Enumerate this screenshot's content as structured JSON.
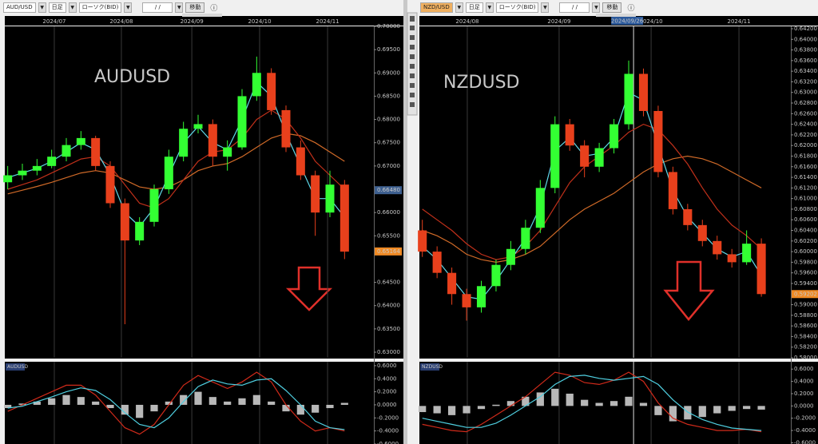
{
  "toolbars": [
    {
      "symbol": "AUD/USD",
      "timeframe": "日足",
      "chart_style": "ローソク(BID)",
      "date": "/  /",
      "button": "移動"
    },
    {
      "symbol": "NZD/USD",
      "timeframe": "日足",
      "chart_style": "ローソク(BID)",
      "date": "/  /",
      "button": "移動"
    }
  ],
  "chart_data": [
    {
      "type": "candlestick",
      "label": "AUDUSD",
      "label_color": "#e8782e",
      "up_color": "#33ff33",
      "down_color": "#e8401c",
      "xlim": [
        -0.2,
        25
      ],
      "xticks": [
        {
          "value": 3.18,
          "label": "2024/07"
        },
        {
          "value": 7.76,
          "label": "2024/08"
        },
        {
          "value": 12.57,
          "label": "2024/09"
        },
        {
          "value": 17.2,
          "label": "2024/10"
        },
        {
          "value": 21.84,
          "label": "2024/11"
        }
      ],
      "ylim": [
        0.6288,
        0.7
      ],
      "yticks": [
        {
          "value": 0.7,
          "label": "0.70000"
        },
        {
          "value": 0.695,
          "label": "0.69500"
        },
        {
          "value": 0.69,
          "label": "0.69000"
        },
        {
          "value": 0.685,
          "label": "0.68500"
        },
        {
          "value": 0.68,
          "label": "0.68000"
        },
        {
          "value": 0.675,
          "label": "0.67500"
        },
        {
          "value": 0.67,
          "label": "0.67000"
        },
        {
          "value": 0.66,
          "label": "0.66000"
        },
        {
          "value": 0.655,
          "label": "0.65500"
        },
        {
          "value": 0.645,
          "label": "0.64500"
        },
        {
          "value": 0.64,
          "label": "0.64000"
        },
        {
          "value": 0.635,
          "label": "0.63500"
        },
        {
          "value": 0.63,
          "label": "0.63000"
        }
      ],
      "open": [
        0.6665,
        0.668,
        0.669,
        0.67,
        0.672,
        0.6745,
        0.676,
        0.67,
        0.662,
        0.654,
        0.658,
        0.665,
        0.672,
        0.678,
        0.679,
        0.672,
        0.674,
        0.685,
        0.69,
        0.682,
        0.674,
        0.668,
        0.66,
        0.666
      ],
      "high": [
        0.67,
        0.6705,
        0.6715,
        0.6735,
        0.676,
        0.6775,
        0.6765,
        0.671,
        0.663,
        0.659,
        0.666,
        0.6735,
        0.6795,
        0.681,
        0.68,
        0.6755,
        0.6865,
        0.6935,
        0.691,
        0.683,
        0.6755,
        0.669,
        0.669,
        0.667
      ],
      "low": [
        0.665,
        0.667,
        0.668,
        0.6695,
        0.671,
        0.6735,
        0.669,
        0.661,
        0.636,
        0.653,
        0.657,
        0.664,
        0.671,
        0.677,
        0.67,
        0.669,
        0.6735,
        0.684,
        0.681,
        0.673,
        0.667,
        0.655,
        0.659,
        0.65
      ],
      "close": [
        0.668,
        0.669,
        0.67,
        0.672,
        0.6745,
        0.676,
        0.67,
        0.662,
        0.654,
        0.658,
        0.665,
        0.672,
        0.678,
        0.679,
        0.672,
        0.674,
        0.685,
        0.69,
        0.682,
        0.674,
        0.668,
        0.66,
        0.666,
        0.6516
      ],
      "series": [
        {
          "color": "#d06a28",
          "values": [
            0.664,
            0.6648,
            0.6656,
            0.6665,
            0.6675,
            0.6685,
            0.669,
            0.6685,
            0.667,
            0.6655,
            0.665,
            0.6655,
            0.667,
            0.669,
            0.67,
            0.6705,
            0.672,
            0.674,
            0.676,
            0.677,
            0.6765,
            0.675,
            0.673,
            0.671
          ]
        },
        {
          "color": "#c0301a",
          "values": [
            0.665,
            0.666,
            0.667,
            0.6685,
            0.67,
            0.6715,
            0.672,
            0.67,
            0.666,
            0.662,
            0.661,
            0.663,
            0.667,
            0.671,
            0.673,
            0.6735,
            0.676,
            0.68,
            0.682,
            0.68,
            0.676,
            0.671,
            0.668,
            0.665
          ]
        },
        {
          "color": "#5fd8e8",
          "values": [
            0.6675,
            0.6685,
            0.6695,
            0.671,
            0.673,
            0.675,
            0.6735,
            0.668,
            0.66,
            0.657,
            0.661,
            0.668,
            0.675,
            0.6785,
            0.675,
            0.6735,
            0.68,
            0.688,
            0.685,
            0.677,
            0.67,
            0.663,
            0.663,
            0.659
          ]
        }
      ],
      "markers": [
        {
          "value": 0.6648,
          "label": "0.66480",
          "color": "#3d5f8f"
        },
        {
          "value": 0.65164,
          "label": "0.65164",
          "color": "#f08a24"
        }
      ]
    },
    {
      "type": "macd",
      "tag": "AUDUSD",
      "bar_color": "#b8b8b8",
      "ylim": [
        -0.6,
        0.66
      ],
      "yticks": [
        {
          "value": 0.6,
          "label": "0.6000"
        },
        {
          "value": 0.4,
          "label": "0.4000"
        },
        {
          "value": 0.2,
          "label": "0.2000"
        },
        {
          "value": 0,
          "label": "0.0000"
        },
        {
          "value": -0.2,
          "label": "-0.2000"
        },
        {
          "value": -0.4,
          "label": "-0.4000"
        },
        {
          "value": -0.6,
          "label": "-0.6000"
        }
      ],
      "bars": [
        -0.05,
        0.02,
        0.05,
        0.1,
        0.15,
        0.12,
        0.05,
        -0.05,
        -0.15,
        -0.2,
        -0.1,
        0.05,
        0.15,
        0.2,
        0.12,
        0.05,
        0.1,
        0.15,
        0.05,
        -0.1,
        -0.15,
        -0.12,
        -0.05,
        0.03
      ],
      "series": [
        {
          "color": "#d02a1a",
          "values": [
            -0.1,
            0.0,
            0.1,
            0.2,
            0.3,
            0.3,
            0.15,
            -0.1,
            -0.35,
            -0.45,
            -0.3,
            0.0,
            0.3,
            0.45,
            0.35,
            0.25,
            0.35,
            0.5,
            0.35,
            0.0,
            -0.25,
            -0.4,
            -0.35,
            -0.4
          ]
        },
        {
          "color": "#4fcfe0",
          "values": [
            -0.05,
            -0.02,
            0.05,
            0.12,
            0.2,
            0.26,
            0.22,
            0.08,
            -0.12,
            -0.3,
            -0.35,
            -0.2,
            0.05,
            0.28,
            0.38,
            0.32,
            0.3,
            0.38,
            0.4,
            0.22,
            0.0,
            -0.25,
            -0.35,
            -0.38
          ]
        }
      ]
    },
    {
      "type": "candlestick",
      "label": "NZDUSD",
      "label_color": "#e8782e",
      "up_color": "#33ff33",
      "down_color": "#e8401c",
      "xlim": [
        -0.2,
        25
      ],
      "xticks": [
        {
          "value": 3.05,
          "label": "2024/08"
        },
        {
          "value": 9.28,
          "label": "2024/09"
        },
        {
          "value": 15.52,
          "label": "2024/10"
        },
        {
          "value": 21.48,
          "label": "2024/11"
        }
      ],
      "cursor": {
        "value": 14.33,
        "label": "2024/09/26"
      },
      "ylim": [
        0.58,
        0.64245
      ],
      "yticks": [
        {
          "value": 0.642,
          "label": "0.64200"
        },
        {
          "value": 0.64,
          "label": "0.64000"
        },
        {
          "value": 0.638,
          "label": "0.63800"
        },
        {
          "value": 0.636,
          "label": "0.63600"
        },
        {
          "value": 0.634,
          "label": "0.63400"
        },
        {
          "value": 0.632,
          "label": "0.63200"
        },
        {
          "value": 0.63,
          "label": "0.63000"
        },
        {
          "value": 0.628,
          "label": "0.62800"
        },
        {
          "value": 0.626,
          "label": "0.62600"
        },
        {
          "value": 0.624,
          "label": "0.62400"
        },
        {
          "value": 0.622,
          "label": "0.62200"
        },
        {
          "value": 0.62,
          "label": "0.62000"
        },
        {
          "value": 0.618,
          "label": "0.61800"
        },
        {
          "value": 0.616,
          "label": "0.61600"
        },
        {
          "value": 0.614,
          "label": "0.61400"
        },
        {
          "value": 0.612,
          "label": "0.61200"
        },
        {
          "value": 0.61,
          "label": "0.61000"
        },
        {
          "value": 0.608,
          "label": "0.60800"
        },
        {
          "value": 0.606,
          "label": "0.60600"
        },
        {
          "value": 0.604,
          "label": "0.60400"
        },
        {
          "value": 0.602,
          "label": "0.60200"
        },
        {
          "value": 0.6,
          "label": "0.60000"
        },
        {
          "value": 0.598,
          "label": "0.59800"
        },
        {
          "value": 0.596,
          "label": "0.59600"
        },
        {
          "value": 0.594,
          "label": "0.59400"
        },
        {
          "value": 0.59,
          "label": "0.59000"
        },
        {
          "value": 0.588,
          "label": "0.58800"
        },
        {
          "value": 0.586,
          "label": "0.58600"
        },
        {
          "value": 0.584,
          "label": "0.58400"
        },
        {
          "value": 0.582,
          "label": "0.58200"
        },
        {
          "value": 0.58,
          "label": "0.58000"
        }
      ],
      "open": [
        0.604,
        0.6,
        0.596,
        0.592,
        0.5895,
        0.5935,
        0.5975,
        0.6005,
        0.6045,
        0.612,
        0.624,
        0.62,
        0.616,
        0.6195,
        0.624,
        0.6335,
        0.6265,
        0.615,
        0.608,
        0.605,
        0.602,
        0.5995,
        0.598,
        0.6015
      ],
      "high": [
        0.606,
        0.601,
        0.597,
        0.593,
        0.5945,
        0.5985,
        0.602,
        0.606,
        0.6135,
        0.6255,
        0.625,
        0.621,
        0.6205,
        0.625,
        0.636,
        0.6345,
        0.6275,
        0.616,
        0.609,
        0.606,
        0.603,
        0.6005,
        0.604,
        0.6025
      ],
      "low": [
        0.599,
        0.595,
        0.59,
        0.587,
        0.5885,
        0.5925,
        0.5965,
        0.5995,
        0.6035,
        0.611,
        0.619,
        0.614,
        0.615,
        0.6185,
        0.623,
        0.6255,
        0.614,
        0.607,
        0.604,
        0.601,
        0.5985,
        0.597,
        0.5975,
        0.5915
      ],
      "close": [
        0.6,
        0.596,
        0.592,
        0.5895,
        0.5935,
        0.5975,
        0.6005,
        0.6045,
        0.612,
        0.624,
        0.62,
        0.616,
        0.6195,
        0.624,
        0.6335,
        0.6265,
        0.615,
        0.608,
        0.605,
        0.602,
        0.5995,
        0.598,
        0.6015,
        0.592
      ],
      "series": [
        {
          "color": "#d06a28",
          "values": [
            0.604,
            0.603,
            0.6015,
            0.5995,
            0.5985,
            0.598,
            0.5985,
            0.5995,
            0.601,
            0.6035,
            0.606,
            0.608,
            0.6095,
            0.611,
            0.613,
            0.615,
            0.6165,
            0.6175,
            0.618,
            0.6175,
            0.6165,
            0.615,
            0.6135,
            0.612
          ]
        },
        {
          "color": "#c0301a",
          "values": [
            0.608,
            0.606,
            0.604,
            0.6015,
            0.5995,
            0.5985,
            0.599,
            0.601,
            0.604,
            0.6085,
            0.613,
            0.616,
            0.618,
            0.62,
            0.6225,
            0.624,
            0.623,
            0.62,
            0.6165,
            0.612,
            0.608,
            0.605,
            0.603,
            0.6005
          ]
        },
        {
          "color": "#5fd8e8",
          "values": [
            0.601,
            0.5985,
            0.595,
            0.5915,
            0.591,
            0.5945,
            0.5985,
            0.6025,
            0.6085,
            0.619,
            0.6215,
            0.618,
            0.6185,
            0.6215,
            0.63,
            0.6285,
            0.62,
            0.6115,
            0.6065,
            0.6035,
            0.6005,
            0.599,
            0.6,
            0.5955
          ]
        }
      ],
      "markers": [
        {
          "value": 0.592,
          "label": "0.59202",
          "color": "#f08a24"
        }
      ]
    },
    {
      "type": "macd",
      "tag": "NZDUSD",
      "bar_color": "#b8b8b8",
      "ylim": [
        -0.62,
        0.72
      ],
      "yticks": [
        {
          "value": 0.6,
          "label": "0.6000"
        },
        {
          "value": 0.4,
          "label": "0.4000"
        },
        {
          "value": 0.2,
          "label": "0.2000"
        },
        {
          "value": 0,
          "label": "0.0000"
        },
        {
          "value": -0.2,
          "label": "-0.2000"
        },
        {
          "value": -0.4,
          "label": "-0.4000"
        },
        {
          "value": -0.6,
          "label": "-0.6000"
        }
      ],
      "bars": [
        -0.1,
        -0.12,
        -0.15,
        -0.12,
        -0.05,
        0.02,
        0.08,
        0.15,
        0.22,
        0.28,
        0.2,
        0.1,
        0.05,
        0.08,
        0.15,
        0.05,
        -0.15,
        -0.25,
        -0.22,
        -0.18,
        -0.12,
        -0.08,
        -0.05,
        -0.06
      ],
      "series": [
        {
          "color": "#d02a1a",
          "values": [
            -0.3,
            -0.35,
            -0.4,
            -0.42,
            -0.3,
            -0.15,
            0.0,
            0.15,
            0.35,
            0.55,
            0.5,
            0.38,
            0.35,
            0.42,
            0.55,
            0.4,
            0.05,
            -0.2,
            -0.3,
            -0.35,
            -0.4,
            -0.4,
            -0.38,
            -0.42
          ]
        },
        {
          "color": "#4fcfe0",
          "values": [
            -0.2,
            -0.25,
            -0.3,
            -0.35,
            -0.35,
            -0.28,
            -0.15,
            0.0,
            0.15,
            0.35,
            0.48,
            0.5,
            0.45,
            0.42,
            0.45,
            0.48,
            0.35,
            0.1,
            -0.1,
            -0.22,
            -0.3,
            -0.36,
            -0.38,
            -0.4
          ]
        }
      ]
    }
  ]
}
